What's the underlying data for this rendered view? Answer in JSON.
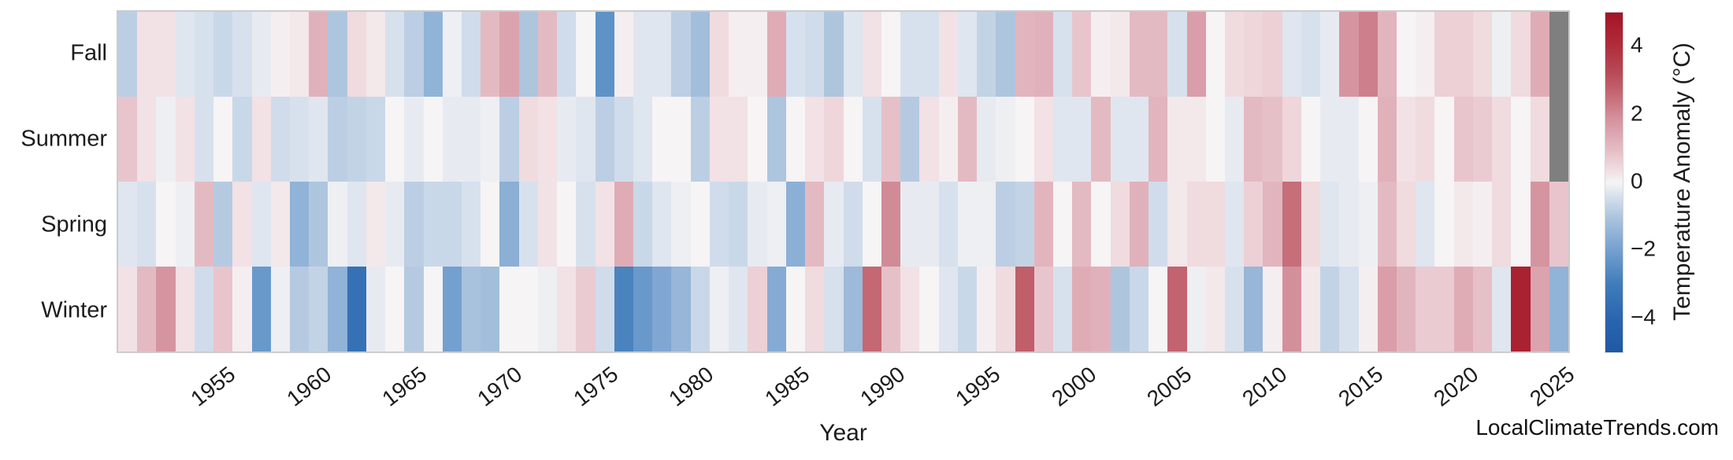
{
  "watermark": "LocalClimateTrends.com",
  "colors": {
    "background": "#ffffff",
    "missing_cell": "#7f7f7f",
    "frame_border": "#cccccc",
    "text": "#1c1c1c"
  },
  "chart_data": {
    "type": "heatmap",
    "title": "",
    "xlabel": "Year",
    "ylabel": "",
    "x_start_year": 1950,
    "x_end_year": 2025,
    "x": [
      1950,
      1951,
      1952,
      1953,
      1954,
      1955,
      1956,
      1957,
      1958,
      1959,
      1960,
      1961,
      1962,
      1963,
      1964,
      1965,
      1966,
      1967,
      1968,
      1969,
      1970,
      1971,
      1972,
      1973,
      1974,
      1975,
      1976,
      1977,
      1978,
      1979,
      1980,
      1981,
      1982,
      1983,
      1984,
      1985,
      1986,
      1987,
      1988,
      1989,
      1990,
      1991,
      1992,
      1993,
      1994,
      1995,
      1996,
      1997,
      1998,
      1999,
      2000,
      2001,
      2002,
      2003,
      2004,
      2005,
      2006,
      2007,
      2008,
      2009,
      2010,
      2011,
      2012,
      2013,
      2014,
      2015,
      2016,
      2017,
      2018,
      2019,
      2020,
      2021,
      2022,
      2023,
      2024,
      2025
    ],
    "x_tick_labels": [
      "1955",
      "1960",
      "1965",
      "1970",
      "1975",
      "1980",
      "1985",
      "1990",
      "1995",
      "2000",
      "2005",
      "2010",
      "2015",
      "2020",
      "2025"
    ],
    "x_tick_years": [
      1955,
      1960,
      1965,
      1970,
      1975,
      1980,
      1985,
      1990,
      1995,
      2000,
      2005,
      2010,
      2015,
      2020,
      2025
    ],
    "rows": [
      "Fall",
      "Summer",
      "Spring",
      "Winter"
    ],
    "series": [
      {
        "name": "Fall",
        "values": [
          -0.8,
          0.3,
          0.3,
          -0.3,
          -0.4,
          -0.6,
          -0.4,
          -0.2,
          0.1,
          0.2,
          1.2,
          -1.0,
          0.4,
          0.2,
          -0.4,
          -0.8,
          -1.5,
          -0.1,
          -0.5,
          1.0,
          1.5,
          -1.0,
          1.0,
          -0.5,
          0.0,
          -2.4,
          0.1,
          -0.3,
          -0.3,
          -0.8,
          -1.2,
          0.4,
          0.1,
          0.1,
          1.3,
          -0.4,
          -0.5,
          -1.0,
          -0.3,
          0.3,
          0.0,
          -0.4,
          -0.4,
          0.3,
          -0.3,
          -0.7,
          -1.0,
          1.1,
          1.2,
          -0.4,
          0.8,
          0.1,
          0.2,
          1.0,
          1.0,
          -0.4,
          1.6,
          0.0,
          0.4,
          0.5,
          0.6,
          -0.3,
          -0.4,
          -0.2,
          1.8,
          2.2,
          1.1,
          0.0,
          0.1,
          0.6,
          0.6,
          0.4,
          -0.1,
          0.4,
          1.3,
          null
        ]
      },
      {
        "name": "Summer",
        "values": [
          0.8,
          0.3,
          -0.1,
          0.3,
          -0.4,
          0.0,
          -0.6,
          0.3,
          -0.5,
          -0.4,
          -0.3,
          -0.8,
          -0.7,
          -0.6,
          0.0,
          -0.2,
          0.0,
          -0.2,
          -0.2,
          -0.1,
          -0.8,
          0.4,
          0.3,
          -0.2,
          -0.3,
          -0.8,
          -0.5,
          -0.3,
          0.0,
          0.0,
          -0.8,
          0.3,
          0.3,
          0.0,
          -1.0,
          0.0,
          0.3,
          0.5,
          0.0,
          -0.4,
          0.9,
          -0.9,
          0.3,
          0.1,
          1.0,
          -0.2,
          -0.1,
          0.0,
          0.3,
          -0.3,
          -0.3,
          1.0,
          -0.3,
          -0.3,
          1.1,
          0.2,
          0.2,
          0.0,
          -0.2,
          1.0,
          0.9,
          0.5,
          0.0,
          -0.2,
          -0.2,
          0.0,
          1.2,
          0.3,
          0.4,
          0.0,
          0.8,
          0.7,
          0.4,
          0.0,
          0.4,
          null
        ]
      },
      {
        "name": "Spring",
        "values": [
          -0.3,
          -0.4,
          0.0,
          -0.1,
          1.0,
          -0.9,
          0.3,
          -0.3,
          0.2,
          -1.5,
          -1.0,
          -0.1,
          -0.3,
          0.2,
          -0.2,
          -0.8,
          -0.6,
          -0.6,
          -0.4,
          0.0,
          -1.6,
          -0.4,
          0.3,
          0.0,
          -0.4,
          0.3,
          1.3,
          -0.6,
          -0.3,
          -0.1,
          0.0,
          -0.5,
          -0.6,
          -0.2,
          -0.1,
          -1.6,
          1.0,
          -0.2,
          -0.5,
          0.0,
          2.0,
          -0.2,
          -0.2,
          -0.4,
          -0.1,
          -0.1,
          -0.8,
          -0.7,
          1.1,
          0.0,
          1.0,
          0.0,
          0.4,
          1.2,
          -0.5,
          0.2,
          0.4,
          0.4,
          -0.3,
          0.6,
          1.1,
          2.5,
          0.4,
          -0.3,
          -0.2,
          -0.1,
          1.0,
          0.4,
          -0.3,
          0.0,
          0.2,
          0.1,
          0.4,
          0.0,
          1.8,
          0.8
        ]
      },
      {
        "name": "Winter",
        "values": [
          0.3,
          1.0,
          1.8,
          0.3,
          -0.5,
          0.8,
          0.1,
          -2.2,
          -0.1,
          -0.9,
          -0.7,
          -1.5,
          -3.5,
          -0.2,
          0.0,
          -0.9,
          0.0,
          -2.0,
          -1.1,
          -1.2,
          0.0,
          0.0,
          -0.1,
          0.3,
          0.7,
          -0.5,
          -2.8,
          -2.2,
          -1.8,
          -1.4,
          -0.6,
          -0.1,
          -0.3,
          0.6,
          -1.7,
          0.0,
          0.4,
          -0.4,
          -1.3,
          2.6,
          0.9,
          0.3,
          0.0,
          -0.3,
          -0.6,
          0.1,
          0.4,
          2.8,
          0.8,
          -0.4,
          1.3,
          1.2,
          -1.0,
          -0.6,
          0.0,
          2.7,
          -0.1,
          0.2,
          -0.4,
          -1.4,
          0.1,
          1.9,
          0.2,
          -0.7,
          -0.4,
          0.1,
          1.6,
          1.1,
          0.7,
          0.7,
          1.3,
          0.9,
          -0.3,
          4.5,
          1.5,
          -1.5
        ]
      }
    ],
    "missing_value_note": "gray cells = no data (Fall and Summer 2025)",
    "colorbar_label": "Temperature Anomaly (°C)",
    "colorbar_ticks": [
      {
        "value": 4,
        "label": "4"
      },
      {
        "value": 2,
        "label": "2"
      },
      {
        "value": 0,
        "label": "0"
      },
      {
        "value": -2,
        "label": "−2"
      },
      {
        "value": -4,
        "label": "−4"
      }
    ],
    "vmin": -5,
    "vmax": 5,
    "grid": false,
    "legend_position": "right-colorbar",
    "colormap_stops": [
      [
        -5.0,
        "#1f57a4"
      ],
      [
        -4.0,
        "#2a66ae"
      ],
      [
        -3.0,
        "#3f7cba"
      ],
      [
        -2.0,
        "#74a0cf"
      ],
      [
        -1.0,
        "#aec5de"
      ],
      [
        -0.4,
        "#d7e1ed"
      ],
      [
        0.0,
        "#f6f4f5"
      ],
      [
        0.4,
        "#f0dbdf"
      ],
      [
        1.0,
        "#e4bac2"
      ],
      [
        1.5,
        "#dba3ae"
      ],
      [
        2.0,
        "#d18b97"
      ],
      [
        2.6,
        "#c46873"
      ],
      [
        3.2,
        "#b94b58"
      ],
      [
        4.0,
        "#b02e3c"
      ],
      [
        5.0,
        "#a31326"
      ]
    ]
  }
}
